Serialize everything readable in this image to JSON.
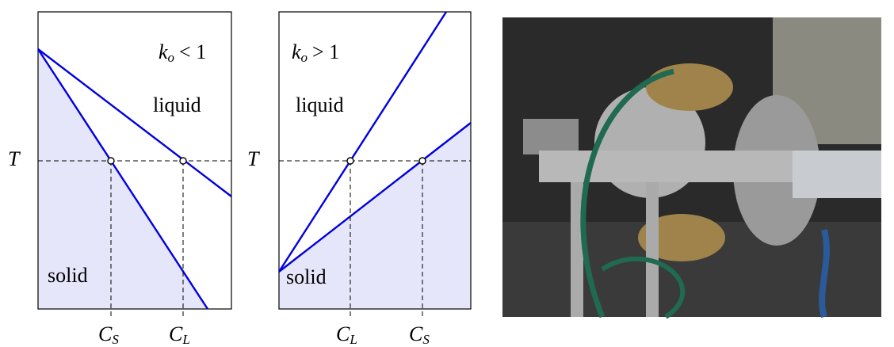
{
  "panels": [
    {
      "ratio": {
        "symbol": "k",
        "sub": "o",
        "relation": "< 1"
      },
      "liquid": "liquid",
      "solid": "solid",
      "temperature": "T",
      "concentrations": [
        {
          "symbol": "C",
          "sub": "S"
        },
        {
          "symbol": "C",
          "sub": "L"
        }
      ]
    },
    {
      "ratio": {
        "symbol": "k",
        "sub": "o",
        "relation": "> 1"
      },
      "liquid": "liquid",
      "solid": "solid",
      "temperature": "T",
      "concentrations": [
        {
          "symbol": "C",
          "sub": "L"
        },
        {
          "symbol": "C",
          "sub": "S"
        }
      ]
    }
  ]
}
